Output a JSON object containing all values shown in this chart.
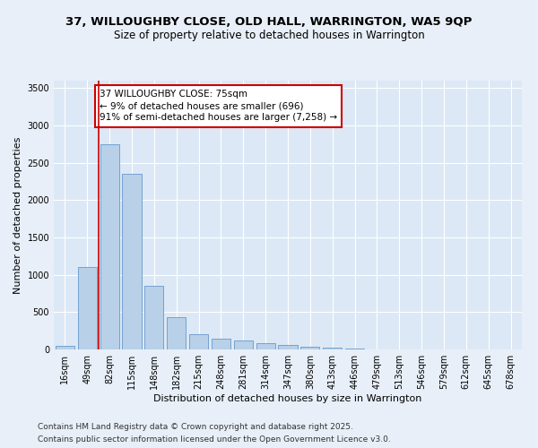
{
  "title1": "37, WILLOUGHBY CLOSE, OLD HALL, WARRINGTON, WA5 9QP",
  "title2": "Size of property relative to detached houses in Warrington",
  "xlabel": "Distribution of detached houses by size in Warrington",
  "ylabel": "Number of detached properties",
  "categories": [
    "16sqm",
    "49sqm",
    "82sqm",
    "115sqm",
    "148sqm",
    "182sqm",
    "215sqm",
    "248sqm",
    "281sqm",
    "314sqm",
    "347sqm",
    "380sqm",
    "413sqm",
    "446sqm",
    "479sqm",
    "513sqm",
    "546sqm",
    "579sqm",
    "612sqm",
    "645sqm",
    "678sqm"
  ],
  "values": [
    50,
    1100,
    2750,
    2350,
    850,
    430,
    200,
    150,
    120,
    80,
    60,
    40,
    20,
    10,
    5,
    2,
    1,
    1,
    0,
    0,
    0
  ],
  "bar_color": "#b8d0e8",
  "bar_edge_color": "#6699cc",
  "vline_color": "#cc0000",
  "annotation_text": "37 WILLOUGHBY CLOSE: 75sqm\n← 9% of detached houses are smaller (696)\n91% of semi-detached houses are larger (7,258) →",
  "annotation_box_color": "#ffffff",
  "annotation_edge_color": "#cc0000",
  "ylim": [
    0,
    3600
  ],
  "yticks": [
    0,
    500,
    1000,
    1500,
    2000,
    2500,
    3000,
    3500
  ],
  "bg_color": "#e8eff8",
  "plot_bg_color": "#dce8f5",
  "grid_color": "#ffffff",
  "footer1": "Contains HM Land Registry data © Crown copyright and database right 2025.",
  "footer2": "Contains public sector information licensed under the Open Government Licence v3.0.",
  "title_fontsize": 9.5,
  "subtitle_fontsize": 8.5,
  "axis_label_fontsize": 8,
  "tick_fontsize": 7,
  "annotation_fontsize": 7.5,
  "footer_fontsize": 6.5
}
